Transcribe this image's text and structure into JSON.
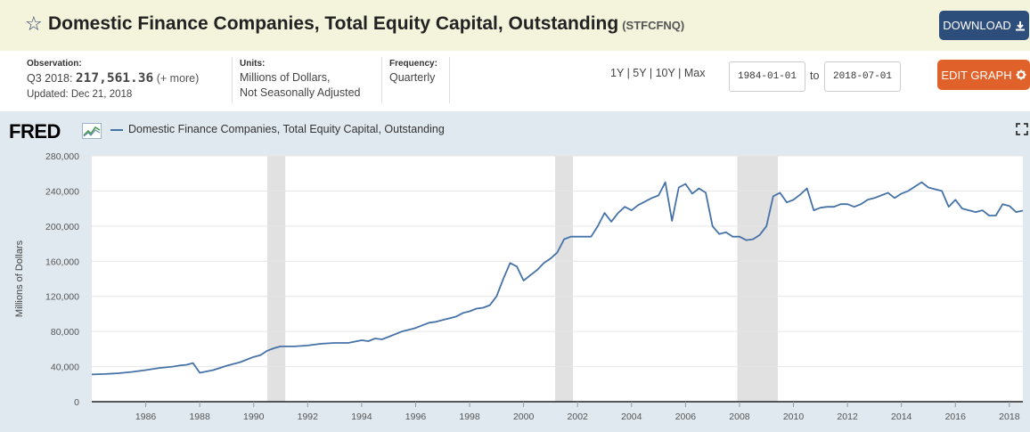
{
  "header": {
    "title": "Domestic Finance Companies, Total Equity Capital, Outstanding",
    "series_id": "(STFCFNQ)",
    "download_label": "DOWNLOAD",
    "star_icon": "☆"
  },
  "meta": {
    "observation_label": "Observation:",
    "observation_period": "Q3 2018:",
    "observation_value": "217,561.36",
    "observation_more": "(+ more)",
    "updated": "Updated: Dec 21, 2018",
    "units_label": "Units:",
    "units_line1": "Millions of Dollars,",
    "units_line2": "Not Seasonally Adjusted",
    "frequency_label": "Frequency:",
    "frequency_value": "Quarterly"
  },
  "controls": {
    "range_1y": "1Y",
    "range_5y": "5Y",
    "range_10y": "10Y",
    "range_max": "Max",
    "separator": "|",
    "start_date": "1984-01-01",
    "to_label": "to",
    "end_date": "2018-07-01",
    "edit_label": "EDIT GRAPH"
  },
  "colors": {
    "line": "#4572a7",
    "recession": "#e1e1e1",
    "download_bg": "#2d4d7a",
    "edit_bg": "#e0622a"
  },
  "chart": {
    "logo": "FRED",
    "legend": "Domestic Finance Companies, Total Equity Capital, Outstanding"
  },
  "chart_data": {
    "type": "line",
    "title": "Domestic Finance Companies, Total Equity Capital, Outstanding",
    "ylabel": "Millions of Dollars",
    "xlabel": "",
    "xlim": [
      1984.0,
      2018.5
    ],
    "ylim": [
      0,
      280000
    ],
    "yticks": [
      0,
      40000,
      80000,
      120000,
      160000,
      200000,
      240000,
      280000
    ],
    "ytick_labels": [
      "0",
      "40,000",
      "80,000",
      "120,000",
      "160,000",
      "200,000",
      "240,000",
      "280,000"
    ],
    "xticks": [
      1986,
      1988,
      1990,
      1992,
      1994,
      1996,
      1998,
      2000,
      2002,
      2004,
      2006,
      2008,
      2010,
      2012,
      2014,
      2016,
      2018
    ],
    "xtick_labels": [
      "1986",
      "1988",
      "1990",
      "1992",
      "1994",
      "1996",
      "1998",
      "2000",
      "2002",
      "2004",
      "2006",
      "2008",
      "2010",
      "2012",
      "2014",
      "2016",
      "2018"
    ],
    "recessions": [
      [
        1990.5,
        1991.17
      ],
      [
        2001.17,
        2001.83
      ],
      [
        2007.92,
        2009.42
      ]
    ],
    "series": [
      {
        "name": "Domestic Finance Companies, Total Equity Capital, Outstanding",
        "x": [
          1984.0,
          1984.5,
          1985.0,
          1985.5,
          1986.0,
          1986.5,
          1987.0,
          1987.3,
          1987.5,
          1987.75,
          1988.0,
          1988.5,
          1989.0,
          1989.5,
          1990.0,
          1990.25,
          1990.5,
          1990.75,
          1991.0,
          1991.5,
          1992.0,
          1992.5,
          1993.0,
          1993.5,
          1994.0,
          1994.25,
          1994.5,
          1994.75,
          1995.0,
          1995.5,
          1996.0,
          1996.25,
          1996.5,
          1996.75,
          1997.0,
          1997.25,
          1997.5,
          1997.75,
          1998.0,
          1998.25,
          1998.5,
          1998.75,
          1999.0,
          1999.25,
          1999.5,
          1999.75,
          2000.0,
          2000.25,
          2000.5,
          2000.75,
          2001.0,
          2001.25,
          2001.5,
          2001.75,
          2002.0,
          2002.5,
          2002.75,
          2003.0,
          2003.25,
          2003.5,
          2003.75,
          2004.0,
          2004.25,
          2004.5,
          2004.75,
          2005.0,
          2005.25,
          2005.5,
          2005.75,
          2006.0,
          2006.25,
          2006.5,
          2006.75,
          2007.0,
          2007.25,
          2007.5,
          2007.75,
          2008.0,
          2008.25,
          2008.5,
          2008.75,
          2009.0,
          2009.25,
          2009.5,
          2009.75,
          2010.0,
          2010.25,
          2010.5,
          2010.75,
          2011.0,
          2011.25,
          2011.5,
          2011.75,
          2012.0,
          2012.25,
          2012.5,
          2012.75,
          2013.0,
          2013.25,
          2013.5,
          2013.75,
          2014.0,
          2014.25,
          2014.5,
          2014.75,
          2015.0,
          2015.25,
          2015.5,
          2015.75,
          2016.0,
          2016.25,
          2016.5,
          2016.75,
          2017.0,
          2017.25,
          2017.5,
          2017.75,
          2018.0,
          2018.25,
          2018.5
        ],
        "values": [
          31000,
          31500,
          32500,
          34000,
          36000,
          38500,
          40000,
          41500,
          42000,
          44000,
          33000,
          36000,
          41000,
          45000,
          51000,
          53000,
          58000,
          61000,
          63000,
          63000,
          64000,
          66000,
          67000,
          67000,
          70000,
          69000,
          72000,
          71000,
          74000,
          80000,
          84000,
          87000,
          90000,
          91000,
          93000,
          95000,
          97000,
          101000,
          103000,
          106000,
          107000,
          110000,
          120000,
          140000,
          158000,
          154000,
          138000,
          144000,
          150000,
          158000,
          163000,
          170000,
          185000,
          188000,
          188000,
          188000,
          200000,
          215000,
          205000,
          215000,
          222000,
          218000,
          224000,
          228000,
          232000,
          235000,
          250000,
          206000,
          244000,
          248000,
          237000,
          243000,
          238000,
          200000,
          191000,
          193000,
          188000,
          188000,
          184000,
          185000,
          190000,
          200000,
          234000,
          238000,
          227000,
          230000,
          236000,
          243000,
          218000,
          221000,
          222000,
          222000,
          225000,
          225000,
          222000,
          225000,
          230000,
          232000,
          235000,
          238000,
          232000,
          237000,
          240000,
          245000,
          250000,
          244000,
          242000,
          240000,
          222000,
          230000,
          220000,
          218000,
          216000,
          218000,
          212000,
          212000,
          225000,
          223000,
          216000,
          217561
        ]
      }
    ]
  }
}
